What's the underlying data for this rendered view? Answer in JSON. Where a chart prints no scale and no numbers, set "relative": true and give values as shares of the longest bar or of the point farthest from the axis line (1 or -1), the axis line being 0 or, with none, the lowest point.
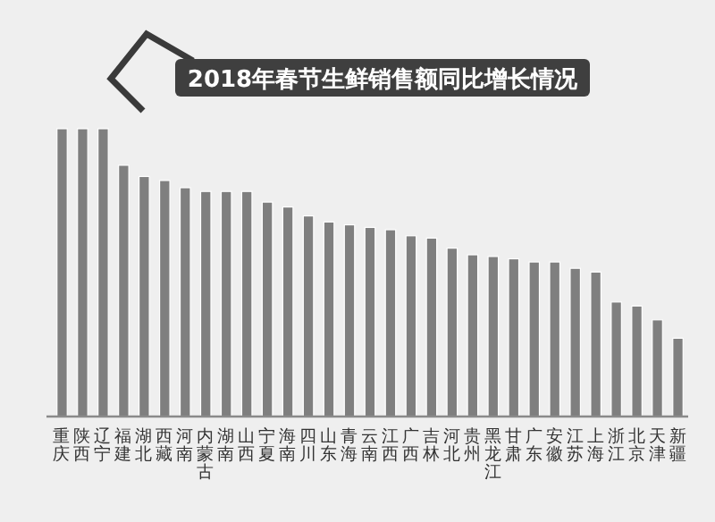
{
  "chart_data": {
    "type": "bar",
    "relative": true,
    "title": "2018年春节生鲜销售额同比增长情况",
    "categories": [
      "重庆",
      "陕西",
      "辽宁",
      "福建",
      "湖北",
      "西藏",
      "河南",
      "内蒙古",
      "湖南",
      "山西",
      "宁夏",
      "海南",
      "四川",
      "山东",
      "青海",
      "云南",
      "江西",
      "广西",
      "吉林",
      "河北",
      "贵州",
      "黑龙江",
      "甘肃",
      "广东",
      "安徽",
      "江苏",
      "上海",
      "浙江",
      "北京",
      "天津",
      "新疆"
    ],
    "values": [
      1,
      1,
      1,
      0.873,
      0.834,
      0.82,
      0.795,
      0.782,
      0.782,
      0.782,
      0.745,
      0.728,
      0.697,
      0.676,
      0.666,
      0.657,
      0.649,
      0.628,
      0.62,
      0.585,
      0.562,
      0.556,
      0.548,
      0.537,
      0.537,
      0.515,
      0.502,
      0.398,
      0.384,
      0.336,
      0.272
    ],
    "color": "#7f7f7f"
  }
}
